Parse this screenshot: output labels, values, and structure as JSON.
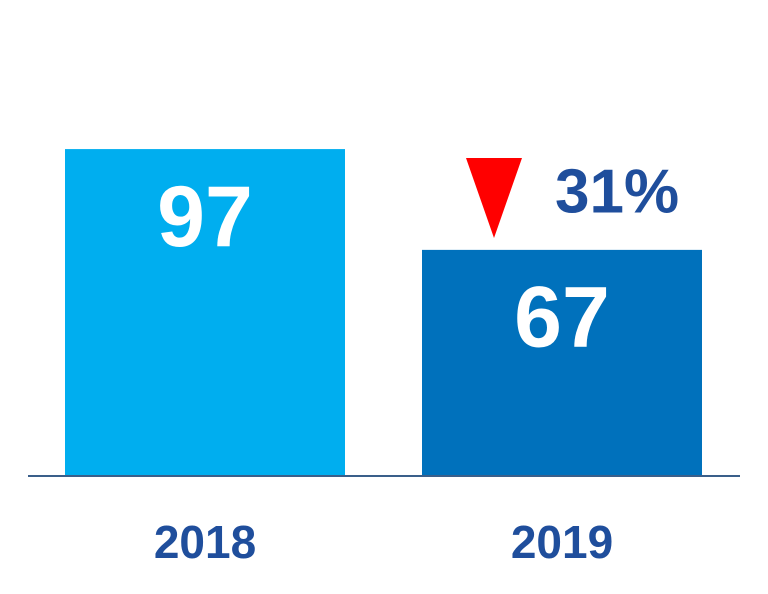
{
  "chart_data": {
    "type": "bar",
    "categories": [
      "2018",
      "2019"
    ],
    "values": [
      97,
      67
    ],
    "colors": [
      "#00aeef",
      "#0071bc"
    ],
    "annotation": "31%"
  }
}
